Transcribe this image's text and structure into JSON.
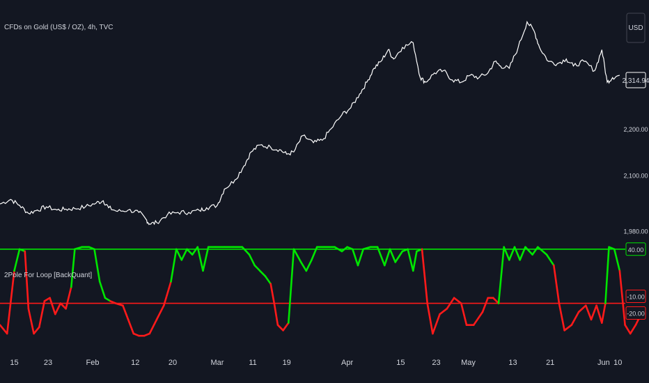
{
  "header": {
    "symbol_title": "CFDs on Gold (US$ / OZ), 4h, TVC",
    "currency_button": "USD"
  },
  "indicator": {
    "title": "2Pole For Loop [BackQuant]"
  },
  "colors": {
    "background": "#131722",
    "price_line": "#ffffff",
    "bull": "#00e600",
    "bear": "#ff1a1a",
    "price_box_border": "#ffffff"
  },
  "chart_data": [
    {
      "type": "line",
      "title": "CFDs on Gold (US$ / OZ), 4h, TVC",
      "x": [
        "Jan 15",
        "Jan 23",
        "Feb",
        "Feb 12",
        "Feb 20",
        "Mar",
        "Mar 11",
        "Mar 19",
        "Apr",
        "Apr 15",
        "Apr 23",
        "May",
        "May 13",
        "May 21",
        "Jun",
        "Jun 10"
      ],
      "xlim_index": [
        0,
        16
      ],
      "ylim": [
        1960,
        2450
      ],
      "y_ticks": [
        {
          "value": 1980,
          "label": "1,980.00"
        },
        {
          "value": 2100,
          "label": "2,100.00"
        },
        {
          "value": 2200,
          "label": "2,200.00"
        }
      ],
      "last_price": {
        "value": 2314.94,
        "label": "2,314.94"
      },
      "series": [
        {
          "values_key": "price",
          "points": [
            [
              0.0,
              2038
            ],
            [
              0.3,
              2048
            ],
            [
              0.55,
              2035
            ],
            [
              0.8,
              2018
            ],
            [
              1.05,
              2025
            ],
            [
              1.3,
              2032
            ],
            [
              1.6,
              2025
            ],
            [
              1.85,
              2027
            ],
            [
              2.1,
              2028
            ],
            [
              2.4,
              2032
            ],
            [
              2.7,
              2040
            ],
            [
              2.9,
              2045
            ],
            [
              3.05,
              2030
            ],
            [
              3.3,
              2022
            ],
            [
              3.6,
              2025
            ],
            [
              3.9,
              2020
            ],
            [
              4.1,
              2005
            ],
            [
              4.2,
              1995
            ],
            [
              4.4,
              1998
            ],
            [
              4.7,
              2015
            ],
            [
              5.0,
              2020
            ],
            [
              5.3,
              2020
            ],
            [
              5.6,
              2024
            ],
            [
              5.8,
              2030
            ],
            [
              6.1,
              2035
            ],
            [
              6.3,
              2070
            ],
            [
              6.6,
              2090
            ],
            [
              6.85,
              2120
            ],
            [
              7.05,
              2150
            ],
            [
              7.3,
              2165
            ],
            [
              7.6,
              2160
            ],
            [
              7.85,
              2155
            ],
            [
              8.05,
              2145
            ],
            [
              8.25,
              2150
            ],
            [
              8.5,
              2185
            ],
            [
              8.8,
              2170
            ],
            [
              9.05,
              2175
            ],
            [
              9.3,
              2200
            ],
            [
              9.6,
              2230
            ],
            [
              9.85,
              2245
            ],
            [
              10.1,
              2275
            ],
            [
              10.3,
              2300
            ],
            [
              10.5,
              2330
            ],
            [
              10.7,
              2345
            ],
            [
              10.9,
              2370
            ],
            [
              11.05,
              2350
            ],
            [
              11.3,
              2375
            ],
            [
              11.6,
              2385
            ],
            [
              11.8,
              2310
            ],
            [
              11.95,
              2300
            ],
            [
              12.2,
              2320
            ],
            [
              12.45,
              2325
            ],
            [
              12.7,
              2305
            ],
            [
              12.95,
              2300
            ],
            [
              13.2,
              2315
            ],
            [
              13.45,
              2310
            ],
            [
              13.7,
              2320
            ],
            [
              13.9,
              2345
            ],
            [
              14.05,
              2335
            ],
            [
              14.3,
              2330
            ],
            [
              14.55,
              2375
            ],
            [
              14.8,
              2430
            ],
            [
              15.0,
              2410
            ],
            [
              15.15,
              2375
            ],
            [
              15.4,
              2345
            ],
            [
              15.65,
              2340
            ],
            [
              15.9,
              2350
            ],
            [
              16.1,
              2335
            ],
            [
              16.4,
              2345
            ],
            [
              16.7,
              2325
            ],
            [
              16.9,
              2370
            ],
            [
              17.05,
              2300
            ],
            [
              17.2,
              2310
            ],
            [
              17.4,
              2315
            ]
          ]
        }
      ],
      "values_note": ""
    },
    {
      "type": "line",
      "title": "2Pole For Loop [BackQuant]",
      "x": [
        "Jan 15",
        "Jan 23",
        "Feb",
        "Feb 12",
        "Feb 20",
        "Mar",
        "Mar 11",
        "Mar 19",
        "Apr",
        "Apr 15",
        "Apr 23",
        "May",
        "May 13",
        "May 21",
        "Jun",
        "Jun 10"
      ],
      "ylim": [
        -45,
        45
      ],
      "y_ticks": [
        {
          "value": 40,
          "label": "40.00"
        },
        {
          "value": -10,
          "label": "-10.00"
        },
        {
          "value": -20,
          "label": "-20.00"
        }
      ],
      "thresholds": {
        "long": 40,
        "short": -10
      },
      "series": [
        {
          "values_key": "oscillator",
          "points": [
            [
              0.0,
              -30
            ],
            [
              0.2,
              -38
            ],
            [
              0.4,
              20
            ],
            [
              0.55,
              40
            ],
            [
              0.7,
              38
            ],
            [
              0.8,
              -15
            ],
            [
              0.95,
              -38
            ],
            [
              1.1,
              -32
            ],
            [
              1.25,
              -8
            ],
            [
              1.4,
              -5
            ],
            [
              1.55,
              -20
            ],
            [
              1.7,
              -10
            ],
            [
              1.85,
              -15
            ],
            [
              2.0,
              5
            ],
            [
              2.1,
              40
            ],
            [
              2.3,
              42
            ],
            [
              2.5,
              42
            ],
            [
              2.65,
              40
            ],
            [
              2.8,
              10
            ],
            [
              2.95,
              -5
            ],
            [
              3.1,
              -8
            ],
            [
              3.25,
              -10
            ],
            [
              3.45,
              -12
            ],
            [
              3.6,
              -25
            ],
            [
              3.75,
              -38
            ],
            [
              3.9,
              -40
            ],
            [
              4.05,
              -40
            ],
            [
              4.2,
              -38
            ],
            [
              4.4,
              -25
            ],
            [
              4.6,
              -12
            ],
            [
              4.8,
              10
            ],
            [
              4.95,
              40
            ],
            [
              5.1,
              30
            ],
            [
              5.25,
              40
            ],
            [
              5.4,
              35
            ],
            [
              5.55,
              42
            ],
            [
              5.7,
              20
            ],
            [
              5.85,
              42
            ],
            [
              6.05,
              42
            ],
            [
              6.3,
              42
            ],
            [
              6.55,
              42
            ],
            [
              6.8,
              42
            ],
            [
              7.0,
              35
            ],
            [
              7.15,
              25
            ],
            [
              7.3,
              20
            ],
            [
              7.45,
              15
            ],
            [
              7.6,
              8
            ],
            [
              7.7,
              -10
            ],
            [
              7.8,
              -30
            ],
            [
              7.95,
              -35
            ],
            [
              8.1,
              -28
            ],
            [
              8.25,
              40
            ],
            [
              8.45,
              28
            ],
            [
              8.6,
              20
            ],
            [
              8.75,
              30
            ],
            [
              8.9,
              42
            ],
            [
              9.1,
              42
            ],
            [
              9.4,
              42
            ],
            [
              9.6,
              38
            ],
            [
              9.75,
              42
            ],
            [
              9.9,
              40
            ],
            [
              10.05,
              25
            ],
            [
              10.2,
              40
            ],
            [
              10.4,
              42
            ],
            [
              10.6,
              42
            ],
            [
              10.8,
              25
            ],
            [
              10.95,
              40
            ],
            [
              11.1,
              28
            ],
            [
              11.3,
              38
            ],
            [
              11.45,
              40
            ],
            [
              11.6,
              20
            ],
            [
              11.7,
              38
            ],
            [
              11.85,
              40
            ],
            [
              12.0,
              -10
            ],
            [
              12.15,
              -38
            ],
            [
              12.35,
              -20
            ],
            [
              12.55,
              -15
            ],
            [
              12.75,
              -5
            ],
            [
              12.95,
              -10
            ],
            [
              13.1,
              -30
            ],
            [
              13.3,
              -30
            ],
            [
              13.55,
              -18
            ],
            [
              13.7,
              -5
            ],
            [
              13.85,
              -5
            ],
            [
              14.0,
              -10
            ],
            [
              14.15,
              42
            ],
            [
              14.3,
              30
            ],
            [
              14.45,
              42
            ],
            [
              14.6,
              30
            ],
            [
              14.75,
              42
            ],
            [
              14.95,
              35
            ],
            [
              15.1,
              42
            ],
            [
              15.35,
              35
            ],
            [
              15.55,
              25
            ],
            [
              15.7,
              -10
            ],
            [
              15.85,
              -35
            ],
            [
              16.05,
              -30
            ],
            [
              16.25,
              -18
            ],
            [
              16.45,
              -12
            ],
            [
              16.6,
              -25
            ],
            [
              16.75,
              -12
            ],
            [
              16.9,
              -28
            ],
            [
              17.0,
              -10
            ],
            [
              17.1,
              42
            ],
            [
              17.25,
              40
            ],
            [
              17.4,
              20
            ],
            [
              17.55,
              -30
            ],
            [
              17.7,
              -38
            ],
            [
              17.85,
              -30
            ],
            [
              18.0,
              -20
            ]
          ]
        }
      ]
    }
  ],
  "x_axis_labels": [
    "15",
    "23",
    "Feb",
    "12",
    "20",
    "Mar",
    "11",
    "19",
    "Apr",
    "15",
    "23",
    "May",
    "13",
    "21",
    "Jun",
    "10"
  ]
}
